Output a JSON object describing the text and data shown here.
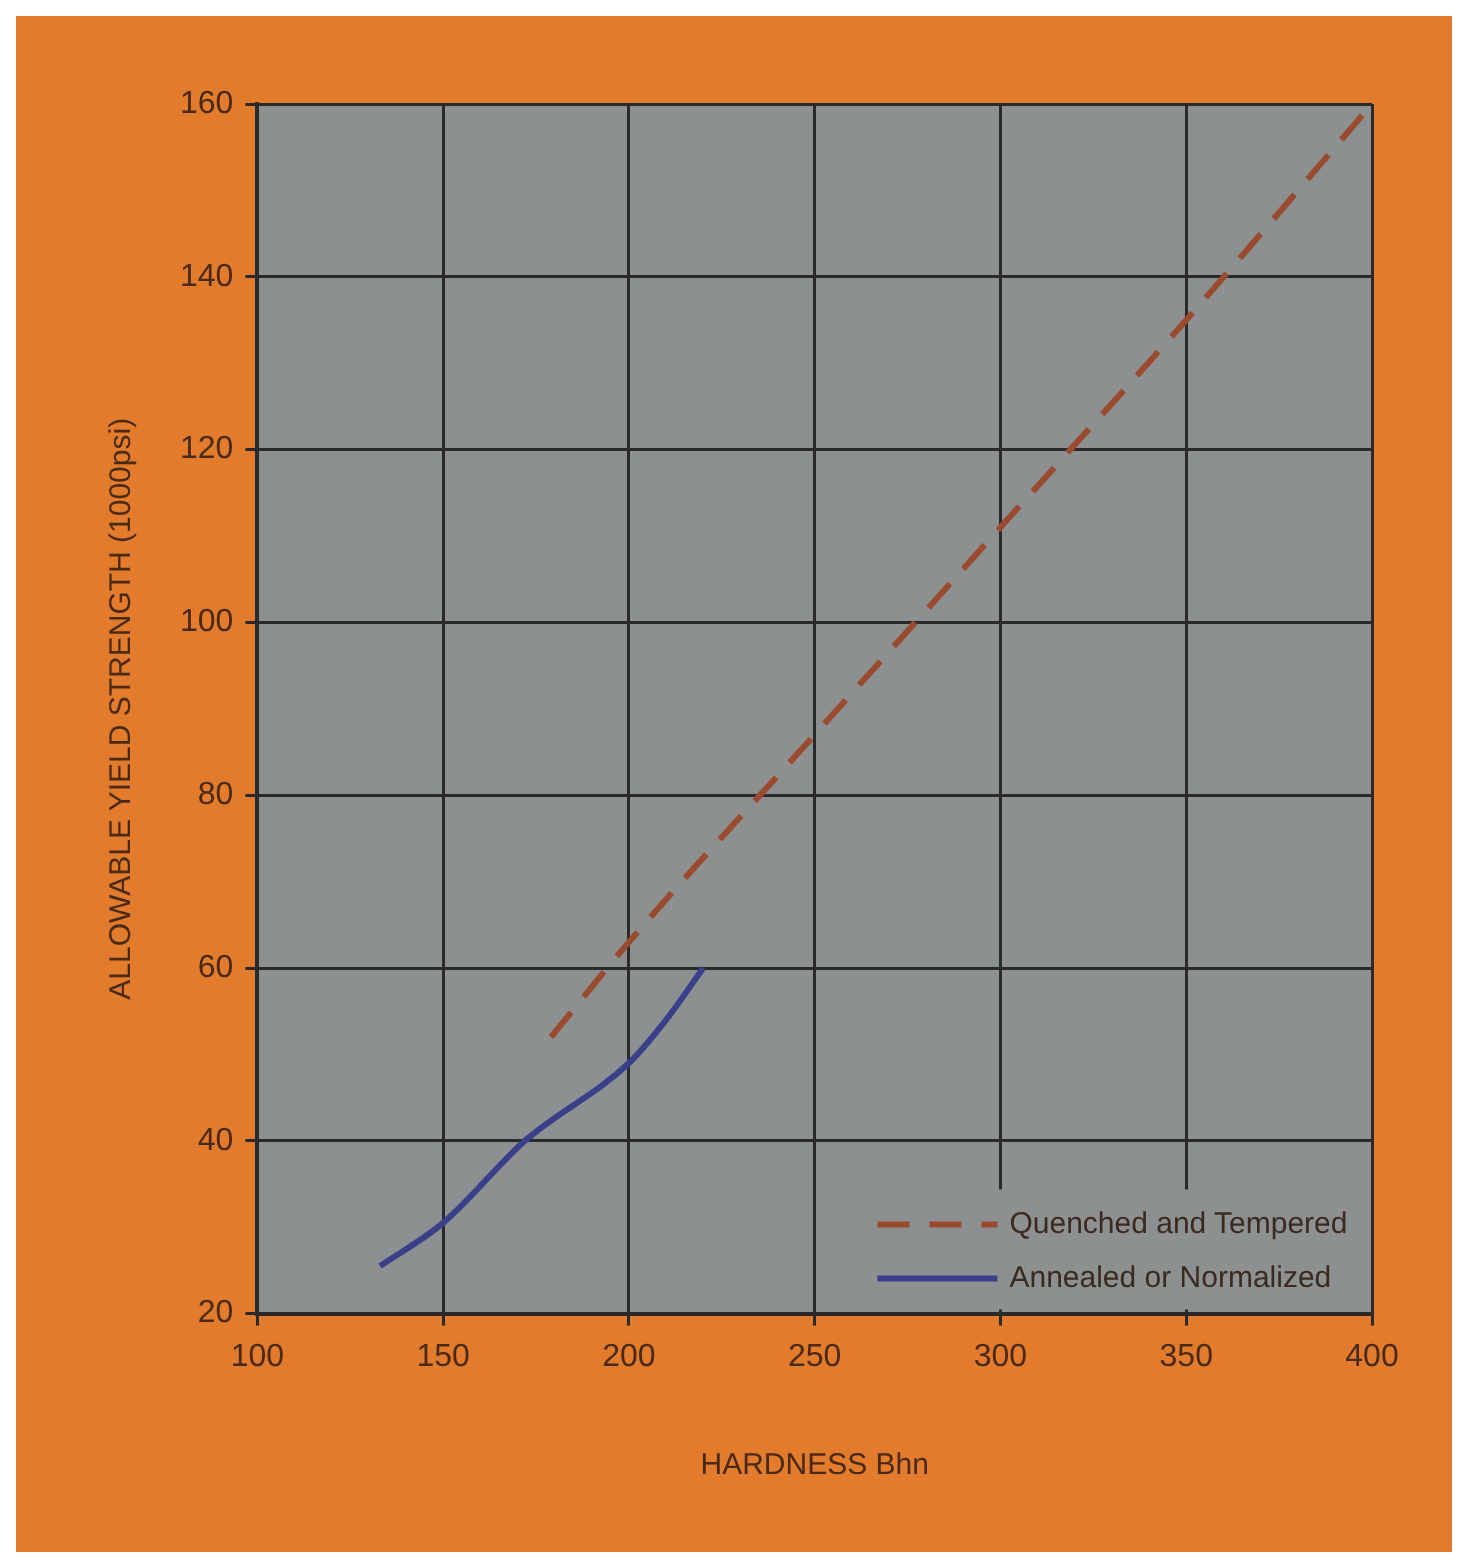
{
  "chart_data": {
    "type": "line",
    "xlabel": "HARDNESS Bhn",
    "ylabel": "ALLOWABLE YIELD STRENGTH (1000psi)",
    "xlim": [
      100,
      400
    ],
    "xticks": [
      100,
      150,
      200,
      250,
      300,
      350,
      400
    ],
    "ylim": [
      20,
      160
    ],
    "yticks": [
      20,
      40,
      60,
      80,
      100,
      120,
      140,
      160
    ],
    "grid": true,
    "legend": "bottom right",
    "marker": "none",
    "series": [
      {
        "name": "Quenched and Tempered",
        "color": "#9a4a2e",
        "line_style": "dashed",
        "x": [
          179,
          200,
          250,
          300,
          350,
          400
        ],
        "values": [
          52,
          63,
          87,
          111,
          135,
          160
        ]
      },
      {
        "name": "Annealed or Normalized",
        "color": "#3a3f8a",
        "line_style": "solid",
        "x": [
          133,
          150,
          172,
          200,
          210,
          220
        ],
        "values": [
          25.5,
          30.5,
          40,
          49,
          54,
          60
        ]
      }
    ]
  }
}
